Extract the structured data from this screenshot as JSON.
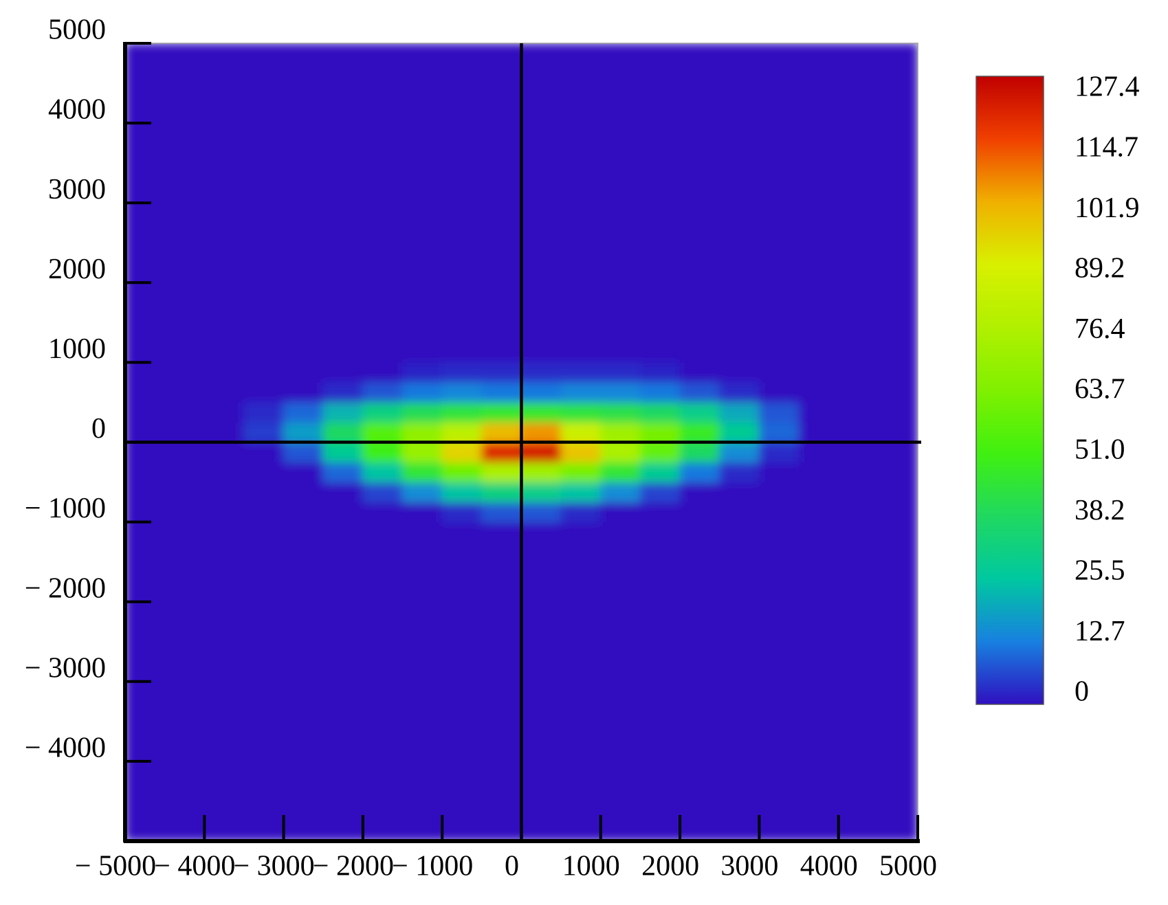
{
  "chart_data": {
    "type": "heatmap",
    "x": [
      -5000,
      -4500,
      -4000,
      -3500,
      -3000,
      -2500,
      -2000,
      -1500,
      -1000,
      -500,
      0,
      500,
      1000,
      1500,
      2000,
      2500,
      3000,
      3500,
      4000,
      4500,
      5000
    ],
    "y": [
      -5000,
      -4750,
      -4500,
      -4250,
      -4000,
      -3750,
      -3500,
      -3250,
      -3000,
      -2750,
      -2500,
      -2250,
      -2000,
      -1750,
      -1500,
      -1250,
      -1000,
      -750,
      -500,
      -250,
      0,
      250,
      500,
      750,
      1000,
      1250,
      1500,
      1750,
      2000,
      2250,
      2500,
      2750,
      3000,
      3250,
      3500,
      3750,
      4000,
      4250,
      4500,
      4750,
      5000
    ],
    "z": [
      [
        0,
        0,
        0,
        0,
        0,
        0,
        0,
        0,
        0,
        0,
        0,
        0,
        0,
        0,
        0,
        0,
        0,
        0,
        0,
        0
      ],
      [
        0,
        0,
        0,
        0,
        0,
        0,
        0,
        0,
        0,
        0,
        0,
        0,
        0,
        0,
        0,
        0,
        0,
        0,
        0,
        0
      ],
      [
        0,
        0,
        0,
        0,
        0,
        0,
        0,
        0,
        0,
        0,
        0,
        0,
        0,
        0,
        0,
        0,
        0,
        0,
        0,
        0
      ],
      [
        0,
        0,
        0,
        0,
        0,
        0,
        0,
        0,
        0,
        0,
        0,
        0,
        0,
        0,
        0,
        0,
        0,
        0,
        0,
        0
      ],
      [
        0,
        0,
        0,
        0,
        0,
        0,
        0,
        0,
        0,
        0,
        0,
        0,
        0,
        0,
        0,
        0,
        0,
        0,
        0,
        0
      ],
      [
        0,
        0,
        0,
        0,
        0,
        0,
        0,
        0,
        0,
        0,
        0,
        0,
        0,
        0,
        0,
        0,
        0,
        0,
        0,
        0
      ],
      [
        0,
        0,
        0,
        0,
        0,
        0,
        0,
        0,
        0,
        0,
        0,
        0,
        0,
        0,
        0,
        0,
        0,
        0,
        0,
        0
      ],
      [
        0,
        0,
        0,
        0,
        0,
        0,
        0,
        0,
        0,
        0,
        0,
        0,
        0,
        0,
        0,
        0,
        0,
        0,
        0,
        0
      ],
      [
        0,
        0,
        0,
        0,
        0,
        0,
        0,
        0,
        0,
        0,
        0,
        0,
        0,
        0,
        0,
        0,
        0,
        0,
        0,
        0
      ],
      [
        0,
        0,
        0,
        0,
        0,
        0,
        0,
        0,
        0,
        0,
        0,
        0,
        0,
        0,
        0,
        0,
        0,
        0,
        0,
        0
      ],
      [
        0,
        0,
        0,
        0,
        0,
        0,
        0,
        0,
        0,
        0,
        0,
        0,
        0,
        0,
        0,
        0,
        0,
        0,
        0,
        0
      ],
      [
        0,
        0,
        0,
        0,
        0,
        0,
        0,
        0,
        0,
        0,
        0,
        0,
        0,
        0,
        0,
        0,
        0,
        0,
        0,
        0
      ],
      [
        0,
        0,
        0,
        0,
        0,
        0,
        0,
        0,
        0,
        0,
        0,
        0,
        0,
        0,
        0,
        0,
        0,
        0,
        0,
        0
      ],
      [
        0,
        0,
        0,
        0,
        0,
        0,
        0,
        0,
        0,
        0,
        0,
        0,
        0,
        0,
        0,
        0,
        0,
        0,
        0,
        0
      ],
      [
        0,
        0,
        0,
        0,
        0,
        0,
        0,
        0,
        0,
        0,
        0,
        0,
        0,
        0,
        0,
        0,
        0,
        0,
        0,
        0
      ],
      [
        0,
        0,
        0,
        0,
        0,
        0,
        0,
        0,
        0,
        0,
        0,
        0,
        0,
        0,
        0,
        0,
        0,
        0,
        0,
        0
      ],
      [
        0,
        0,
        0,
        0,
        0,
        0,
        0,
        0,
        3,
        8,
        8,
        3,
        0,
        0,
        0,
        0,
        0,
        0,
        0,
        0
      ],
      [
        0,
        0,
        0,
        0,
        0,
        0,
        6,
        15,
        25,
        32,
        30,
        25,
        15,
        6,
        0,
        0,
        0,
        0,
        0,
        0
      ],
      [
        0,
        0,
        0,
        0,
        0,
        10,
        25,
        45,
        60,
        75,
        72,
        62,
        45,
        28,
        12,
        3,
        0,
        0,
        0,
        0
      ],
      [
        0,
        0,
        0,
        0,
        8,
        28,
        50,
        70,
        95,
        120,
        122,
        98,
        75,
        58,
        38,
        15,
        3,
        0,
        0,
        0
      ],
      [
        0,
        0,
        0,
        5,
        18,
        38,
        55,
        68,
        80,
        100,
        105,
        85,
        72,
        62,
        48,
        28,
        10,
        0,
        0,
        0
      ],
      [
        0,
        0,
        0,
        3,
        10,
        22,
        32,
        40,
        44,
        46,
        46,
        44,
        42,
        38,
        30,
        20,
        8,
        0,
        0,
        0
      ],
      [
        0,
        0,
        0,
        0,
        0,
        3,
        8,
        12,
        14,
        12,
        12,
        14,
        14,
        12,
        8,
        3,
        0,
        0,
        0,
        0
      ],
      [
        0,
        0,
        0,
        0,
        0,
        0,
        0,
        2,
        3,
        3,
        3,
        3,
        3,
        2,
        0,
        0,
        0,
        0,
        0,
        0
      ],
      [
        0,
        0,
        0,
        0,
        0,
        0,
        0,
        0,
        0,
        0,
        0,
        0,
        0,
        0,
        0,
        0,
        0,
        0,
        0,
        0
      ],
      [
        0,
        0,
        0,
        0,
        0,
        0,
        0,
        0,
        0,
        0,
        0,
        0,
        0,
        0,
        0,
        0,
        0,
        0,
        0,
        0
      ],
      [
        0,
        0,
        0,
        0,
        0,
        0,
        0,
        0,
        0,
        0,
        0,
        0,
        0,
        0,
        0,
        0,
        0,
        0,
        0,
        0
      ],
      [
        0,
        0,
        0,
        0,
        0,
        0,
        0,
        0,
        0,
        0,
        0,
        0,
        0,
        0,
        0,
        0,
        0,
        0,
        0,
        0
      ],
      [
        0,
        0,
        0,
        0,
        0,
        0,
        0,
        0,
        0,
        0,
        0,
        0,
        0,
        0,
        0,
        0,
        0,
        0,
        0,
        0
      ],
      [
        0,
        0,
        0,
        0,
        0,
        0,
        0,
        0,
        0,
        0,
        0,
        0,
        0,
        0,
        0,
        0,
        0,
        0,
        0,
        0
      ],
      [
        0,
        0,
        0,
        0,
        0,
        0,
        0,
        0,
        0,
        0,
        0,
        0,
        0,
        0,
        0,
        0,
        0,
        0,
        0,
        0
      ],
      [
        0,
        0,
        0,
        0,
        0,
        0,
        0,
        0,
        0,
        0,
        0,
        0,
        0,
        0,
        0,
        0,
        0,
        0,
        0,
        0
      ],
      [
        0,
        0,
        0,
        0,
        0,
        0,
        0,
        0,
        0,
        0,
        0,
        0,
        0,
        0,
        0,
        0,
        0,
        0,
        0,
        0
      ],
      [
        0,
        0,
        0,
        0,
        0,
        0,
        0,
        0,
        0,
        0,
        0,
        0,
        0,
        0,
        0,
        0,
        0,
        0,
        0,
        0
      ],
      [
        0,
        0,
        0,
        0,
        0,
        0,
        0,
        0,
        0,
        0,
        0,
        0,
        0,
        0,
        0,
        0,
        0,
        0,
        0,
        0
      ],
      [
        0,
        0,
        0,
        0,
        0,
        0,
        0,
        0,
        0,
        0,
        0,
        0,
        0,
        0,
        0,
        0,
        0,
        0,
        0,
        0
      ],
      [
        0,
        0,
        0,
        0,
        0,
        0,
        0,
        0,
        0,
        0,
        0,
        0,
        0,
        0,
        0,
        0,
        0,
        0,
        0,
        0
      ],
      [
        0,
        0,
        0,
        0,
        0,
        0,
        0,
        0,
        0,
        0,
        0,
        0,
        0,
        0,
        0,
        0,
        0,
        0,
        0,
        0
      ],
      [
        0,
        0,
        0,
        0,
        0,
        0,
        0,
        0,
        0,
        0,
        0,
        0,
        0,
        0,
        0,
        0,
        0,
        0,
        0,
        0
      ],
      [
        0,
        0,
        0,
        0,
        0,
        0,
        0,
        0,
        0,
        0,
        0,
        0,
        0,
        0,
        0,
        0,
        0,
        0,
        0,
        0
      ]
    ],
    "xlim": [
      -5000,
      5000
    ],
    "ylim": [
      -5000,
      5000
    ],
    "xticks": [
      {
        "value": -5000,
        "label": "− 5000"
      },
      {
        "value": -4000,
        "label": "− 4000"
      },
      {
        "value": -3000,
        "label": "− 3000"
      },
      {
        "value": -2000,
        "label": "− 2000"
      },
      {
        "value": -1000,
        "label": "− 1000"
      },
      0,
      1000,
      2000,
      3000,
      4000,
      5000
    ],
    "yticks": [
      {
        "value": -4000,
        "label": "− 4000"
      },
      {
        "value": -3000,
        "label": "− 3000"
      },
      {
        "value": -2000,
        "label": "− 2000"
      },
      {
        "value": -1000,
        "label": "− 1000"
      },
      0,
      1000,
      2000,
      3000,
      4000,
      5000
    ],
    "zlim": [
      0,
      127.4
    ],
    "zticks": [
      0,
      12.7,
      25.5,
      38.2,
      {
        "value": 51,
        "label": "51.0"
      },
      63.7,
      76.4,
      89.2,
      101.9,
      114.7,
      127.4
    ],
    "colorscale": [
      "#3010c0",
      "#1880e0",
      "#00c8a0",
      "#20d860",
      "#40f010",
      "#80f000",
      "#b0f000",
      "#d8f000",
      "#f0b000",
      "#f04000",
      "#c00000"
    ]
  }
}
